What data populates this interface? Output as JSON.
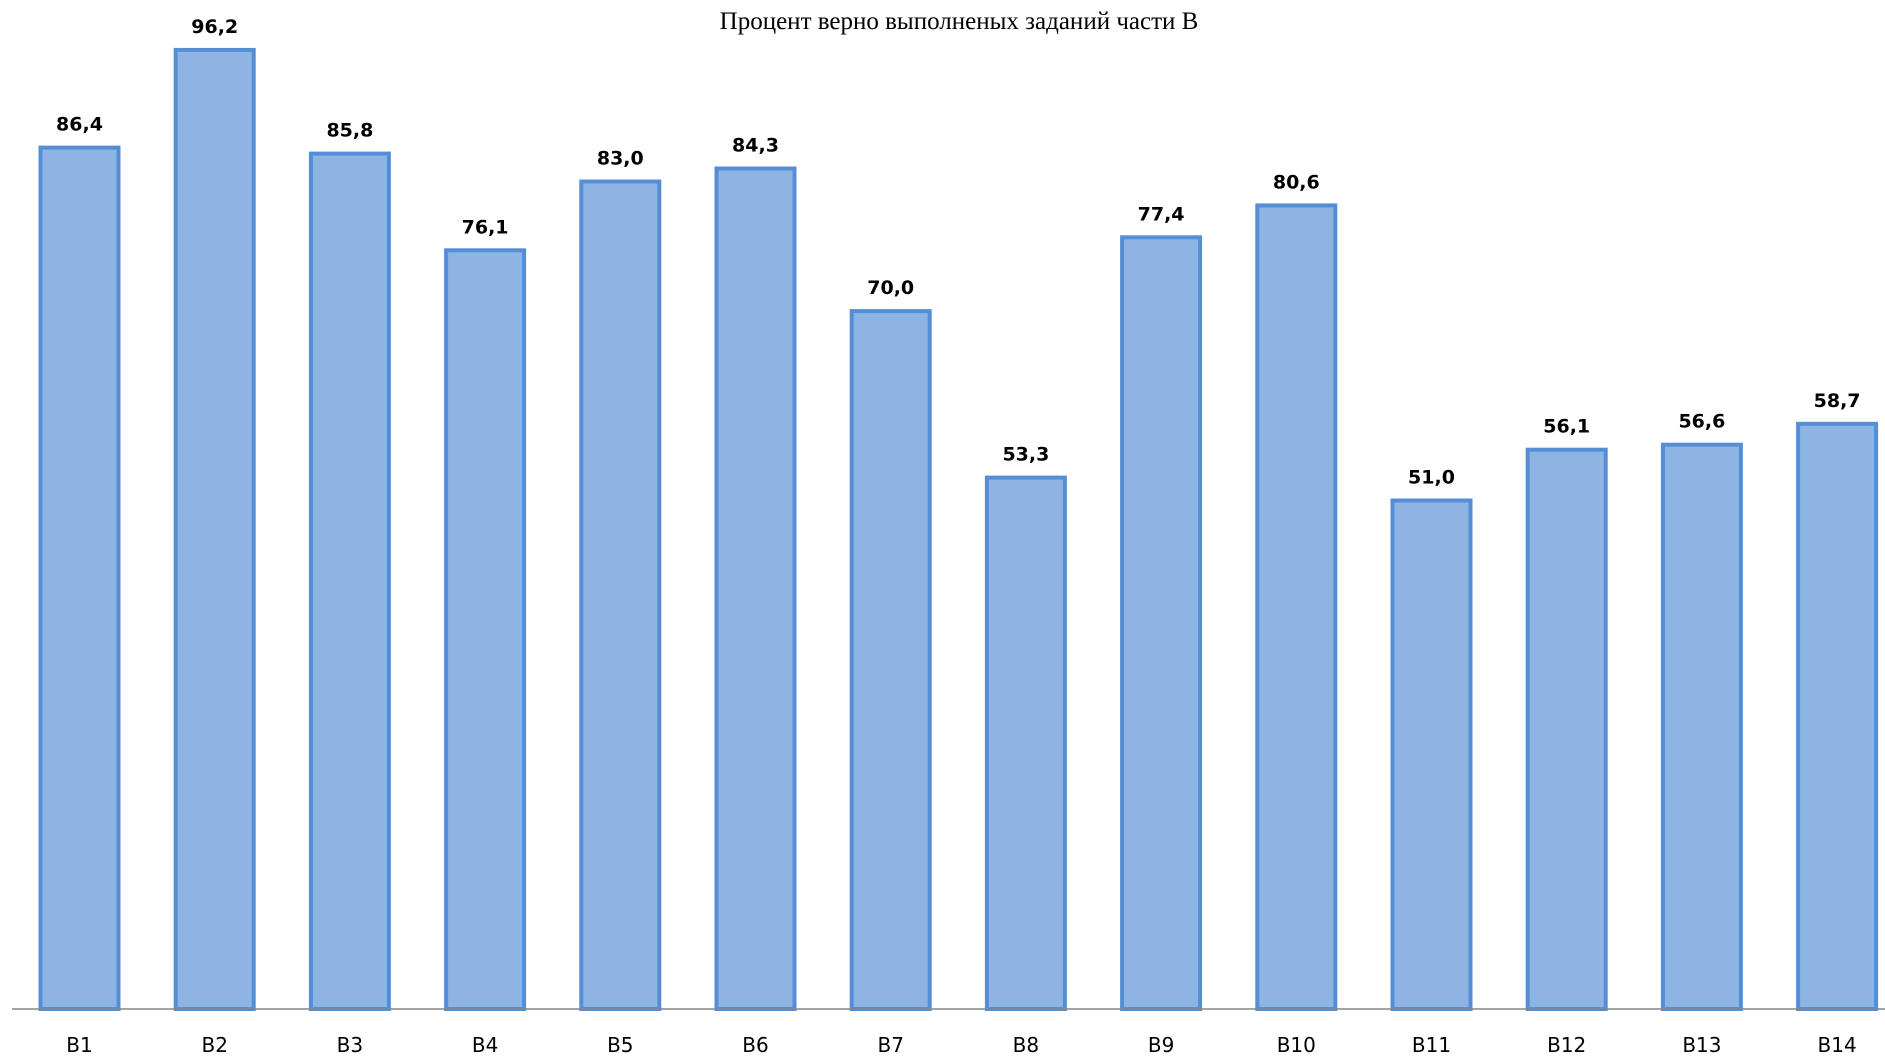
{
  "chart_data": {
    "type": "bar",
    "title": "Процент верно выполненых заданий части В",
    "categories": [
      "В1",
      "В2",
      "В3",
      "В4",
      "В5",
      "В6",
      "В7",
      "В8",
      "В9",
      "В10",
      "В11",
      "В12",
      "В13",
      "В14"
    ],
    "values": [
      86.4,
      96.2,
      85.8,
      76.1,
      83.0,
      84.3,
      70.0,
      53.3,
      77.4,
      80.6,
      51.0,
      56.1,
      56.6,
      58.7
    ],
    "value_labels": [
      "86,4",
      "96,2",
      "85,8",
      "76,1",
      "83,0",
      "84,3",
      "70,0",
      "53,3",
      "77,4",
      "80,6",
      "51,0",
      "56,1",
      "56,6",
      "58,7"
    ],
    "xlabel": "",
    "ylabel": "",
    "ylim": [
      0,
      100
    ],
    "grid": false,
    "legend": "none",
    "colors": {
      "bar_fill": "#8EB4E3",
      "bar_stroke": "#558ED5",
      "axis": "#868686",
      "text": "#000000"
    }
  }
}
